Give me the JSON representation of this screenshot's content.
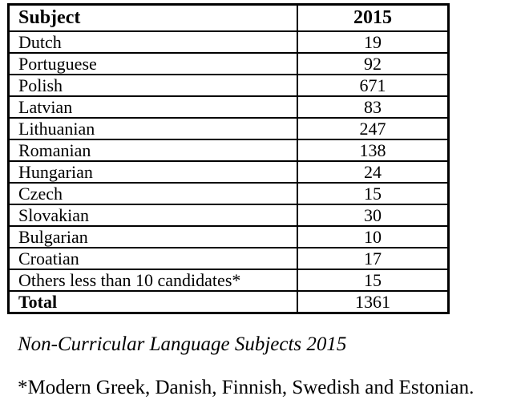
{
  "table": {
    "header": {
      "subject": "Subject",
      "year": "2015"
    },
    "rows": [
      {
        "subject": "Dutch",
        "value": "19"
      },
      {
        "subject": "Portuguese",
        "value": "92"
      },
      {
        "subject": "Polish",
        "value": "671"
      },
      {
        "subject": "Latvian",
        "value": "83"
      },
      {
        "subject": "Lithuanian",
        "value": "247"
      },
      {
        "subject": "Romanian",
        "value": "138"
      },
      {
        "subject": "Hungarian",
        "value": "24"
      },
      {
        "subject": "Czech",
        "value": "15"
      },
      {
        "subject": "Slovakian",
        "value": "30"
      },
      {
        "subject": "Bulgarian",
        "value": "10"
      },
      {
        "subject": "Croatian",
        "value": "17"
      },
      {
        "subject": "Others less than 10 candidates*",
        "value": "15"
      }
    ],
    "total": {
      "label": "Total",
      "value": "1361"
    }
  },
  "caption": "Non-Curricular Language Subjects 2015",
  "footnote": "*Modern Greek, Danish, Finnish, Swedish and Estonian."
}
